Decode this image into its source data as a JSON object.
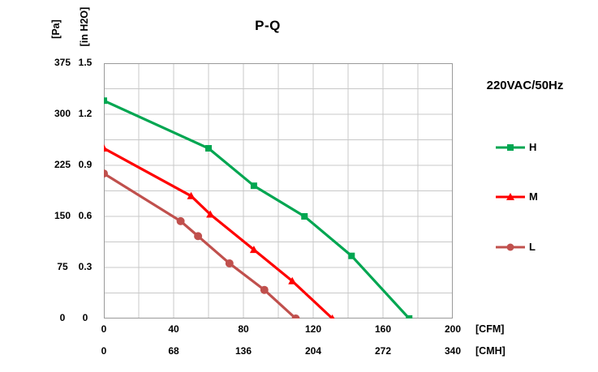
{
  "chart_data": {
    "type": "line",
    "title": "P-Q",
    "legend_title": "220VAC/50Hz",
    "y_axis_left": {
      "label": "[Pa]",
      "ticks": [
        "375",
        "300",
        "225",
        "150",
        "75",
        "0"
      ],
      "min": 0,
      "max": 375,
      "grid_step": 37.5
    },
    "y_axis_right": {
      "label": "[in H2O]",
      "ticks": [
        "1.5",
        "1.2",
        "0.9",
        "0.6",
        "0.3",
        "0"
      ],
      "max": 1.5
    },
    "x_axis_cfm": {
      "label": "[CFM]",
      "ticks": [
        "0",
        "40",
        "80",
        "120",
        "160",
        "200"
      ],
      "min": 0,
      "max": 200,
      "grid_step": 20
    },
    "x_axis_cmh": {
      "label": "[CMH]",
      "ticks": [
        "0",
        "68",
        "136",
        "204",
        "272",
        "340"
      ]
    },
    "grid": "on",
    "legend_position": "right",
    "grid_color": "#c8c8c8",
    "border_color": "#9a9a9a",
    "series": [
      {
        "name": "H",
        "color": "#00a651",
        "marker": "square",
        "points_cfm_pa": [
          [
            0,
            320
          ],
          [
            60,
            250
          ],
          [
            86,
            195
          ],
          [
            115,
            150
          ],
          [
            142,
            92
          ],
          [
            175,
            0
          ]
        ]
      },
      {
        "name": "M",
        "color": "#ff0000",
        "marker": "triangle",
        "points_cfm_pa": [
          [
            0,
            250
          ],
          [
            50,
            180
          ],
          [
            61,
            153
          ],
          [
            86,
            101
          ],
          [
            108,
            55
          ],
          [
            131,
            0
          ]
        ]
      },
      {
        "name": "L",
        "color": "#c0504d",
        "marker": "circle",
        "points_cfm_pa": [
          [
            0,
            213
          ],
          [
            44,
            143
          ],
          [
            54,
            121
          ],
          [
            72,
            81
          ],
          [
            92,
            42
          ],
          [
            110,
            0
          ]
        ]
      }
    ]
  }
}
